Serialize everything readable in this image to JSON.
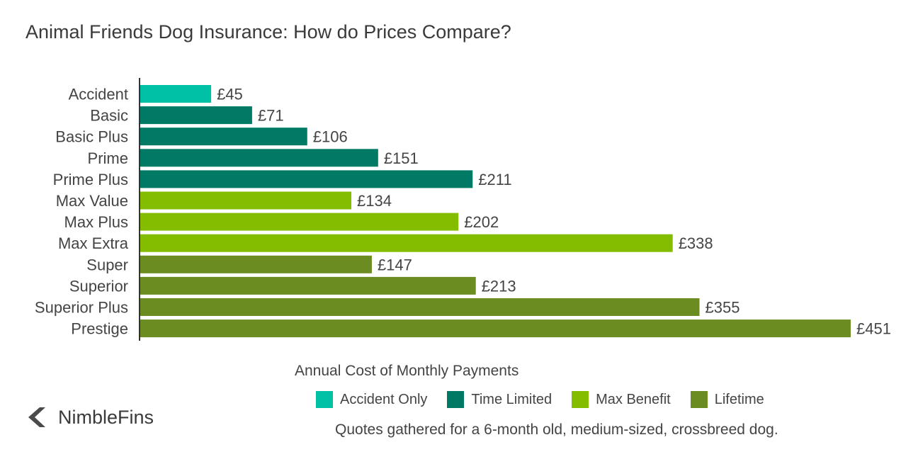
{
  "chart_data": {
    "type": "bar",
    "orientation": "horizontal",
    "title": "Animal Friends Dog Insurance: How do Prices Compare?",
    "xlabel": "Annual Cost of Monthly Payments",
    "xlim": [
      0,
      451
    ],
    "grid": false,
    "legend_position": "bottom",
    "value_prefix": "£",
    "categories": [
      "Accident",
      "Basic",
      "Basic Plus",
      "Prime",
      "Prime Plus",
      "Max Value",
      "Max Plus",
      "Max Extra",
      "Super",
      "Superior",
      "Superior Plus",
      "Prestige"
    ],
    "values": [
      45,
      71,
      106,
      151,
      211,
      134,
      202,
      338,
      147,
      213,
      355,
      451
    ],
    "value_labels": [
      "£45",
      "£71",
      "£106",
      "£151",
      "£211",
      "£134",
      "£202",
      "£338",
      "£147",
      "£213",
      "£355",
      "£451"
    ],
    "groups": [
      "Accident Only",
      "Time Limited",
      "Time Limited",
      "Time Limited",
      "Time Limited",
      "Max Benefit",
      "Max Benefit",
      "Max Benefit",
      "Lifetime",
      "Lifetime",
      "Lifetime",
      "Lifetime"
    ],
    "legend": [
      {
        "name": "Accident Only",
        "color": "#00c1a6"
      },
      {
        "name": "Time Limited",
        "color": "#007a64"
      },
      {
        "name": "Max Benefit",
        "color": "#84bc00"
      },
      {
        "name": "Lifetime",
        "color": "#6a8c21"
      }
    ]
  },
  "footnote": "Quotes gathered for a 6-month old, medium-sized, crossbreed dog.",
  "brand": {
    "name": "NimbleFins",
    "icon": "chevron-left-icon"
  }
}
